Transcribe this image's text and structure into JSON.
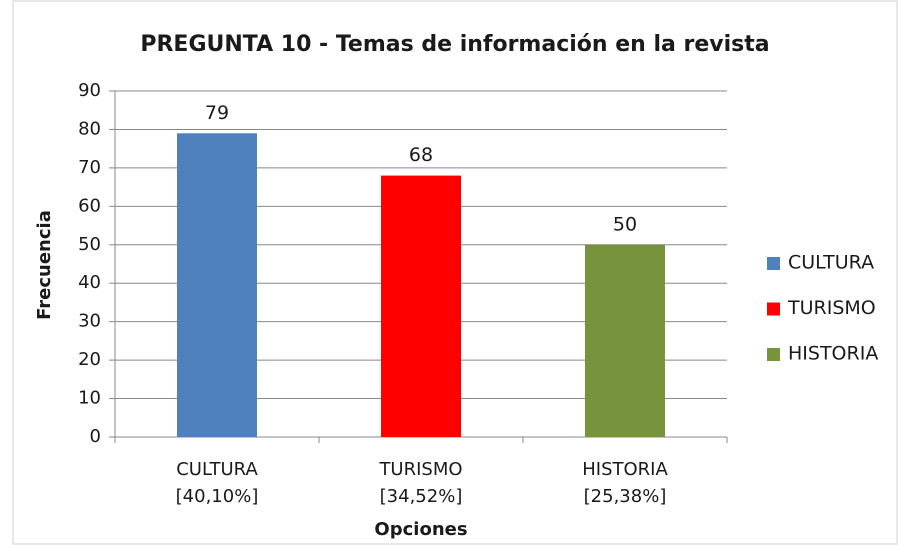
{
  "chart_data": {
    "type": "bar",
    "title": "PREGUNTA 10 - Temas de información en la revista",
    "x_label": "Opciones",
    "y_label": "Frecuencia",
    "categories": [
      "CULTURA",
      "TURISMO",
      "HISTORIA"
    ],
    "category_shares": [
      "[40,10%]",
      "[34,52%]",
      "[25,38%]"
    ],
    "series": [
      {
        "name": "CULTURA",
        "color": "#4f81bd",
        "values": [
          79,
          null,
          null
        ]
      },
      {
        "name": "TURISMO",
        "color": "#ff0000",
        "values": [
          null,
          68,
          null
        ]
      },
      {
        "name": "HISTORIA",
        "color": "#77933c",
        "values": [
          null,
          null,
          50
        ]
      }
    ],
    "ylim": [
      0,
      90
    ],
    "yticks": [
      0,
      10,
      20,
      30,
      40,
      50,
      60,
      70,
      80,
      90
    ],
    "grid": true,
    "legend": "right"
  }
}
